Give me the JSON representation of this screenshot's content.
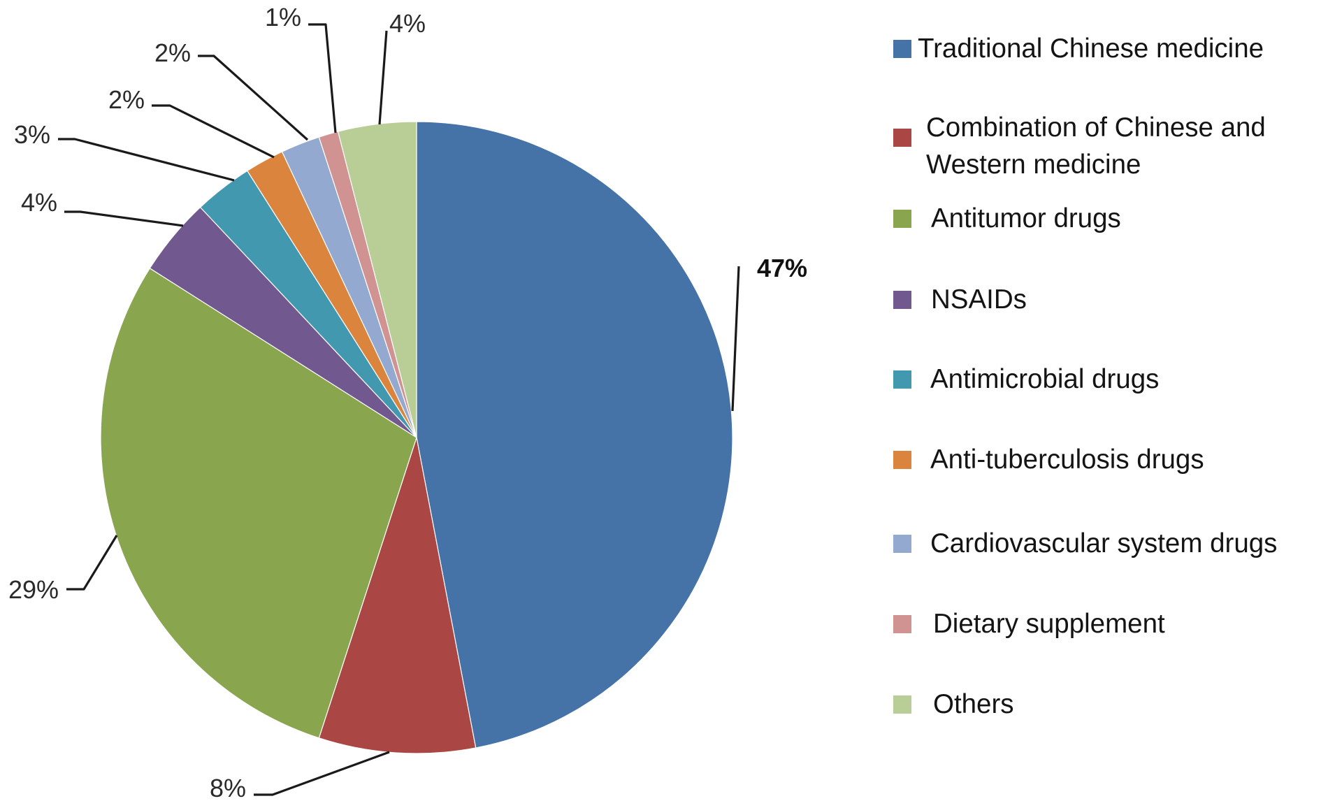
{
  "chart_data": {
    "type": "pie",
    "title": "",
    "start_angle": "12 o'clock",
    "direction": "clockwise",
    "legend_position": "right",
    "categories": [
      "Traditional Chinese medicine",
      "Combination of Chinese and Western medicine",
      "Antitumor drugs",
      "NSAIDs",
      "Antimicrobial drugs",
      "Anti-tuberculosis drugs",
      "Cardiovascular system drugs",
      "Dietary supplement",
      "Others"
    ],
    "values": [
      47,
      8,
      29,
      4,
      3,
      2,
      2,
      1,
      4
    ],
    "data_labels": [
      "47%",
      "8%",
      "29%",
      "4%",
      "3%",
      "2%",
      "2%",
      "1%",
      "4%"
    ],
    "colors": [
      "#4572A7",
      "#AA4643",
      "#89A54E",
      "#71588F",
      "#4198AF",
      "#DB843D",
      "#93A9CF",
      "#D19392",
      "#B9CD96"
    ],
    "bold_labels": [
      "47%"
    ]
  },
  "legend": {
    "items": [
      {
        "label": "Traditional Chinese medicine",
        "color": "#4572A7"
      },
      {
        "label": "Combination of Chinese and\nWestern medicine",
        "color": "#AA4643"
      },
      {
        "label": "Antitumor drugs",
        "color": "#89A54E"
      },
      {
        "label": "NSAIDs",
        "color": "#71588F"
      },
      {
        "label": "Antimicrobial drugs",
        "color": "#4198AF"
      },
      {
        "label": "Anti-tuberculosis drugs",
        "color": "#DB843D"
      },
      {
        "label": "Cardiovascular system drugs",
        "color": "#93A9CF"
      },
      {
        "label": "Dietary supplement",
        "color": "#D19392"
      },
      {
        "label": "Others",
        "color": "#B9CD96"
      }
    ]
  }
}
